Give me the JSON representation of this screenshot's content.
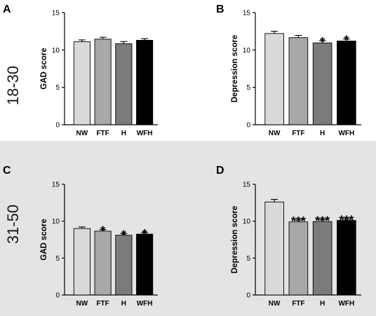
{
  "row_labels": [
    "18-30",
    "31-50"
  ],
  "colors": {
    "background_bottom": "#e4e4e4",
    "bars": [
      "#d9d9d9",
      "#a8a8a8",
      "#7b7b7b",
      "#000000"
    ],
    "stroke": "#000000"
  },
  "chart_data": [
    {
      "type": "bar",
      "panel": "A",
      "row": 0,
      "col": 0,
      "ylabel": "GAD score",
      "ylim": [
        0,
        15
      ],
      "yticks": [
        0,
        5,
        10,
        15
      ],
      "categories": [
        "NW",
        "FTF",
        "H",
        "WFH"
      ],
      "values": [
        11.1,
        11.45,
        10.85,
        11.3
      ],
      "errors": [
        0.25,
        0.25,
        0.28,
        0.22
      ],
      "significance": [
        "",
        "",
        "",
        ""
      ]
    },
    {
      "type": "bar",
      "panel": "B",
      "row": 0,
      "col": 1,
      "ylabel": "Depression score",
      "ylim": [
        0,
        15
      ],
      "yticks": [
        0,
        5,
        10,
        15
      ],
      "categories": [
        "NW",
        "FTF",
        "H",
        "WFH"
      ],
      "values": [
        12.2,
        11.65,
        10.95,
        11.2
      ],
      "errors": [
        0.3,
        0.3,
        0.3,
        0.28
      ],
      "significance": [
        "",
        "",
        "*",
        "*"
      ]
    },
    {
      "type": "bar",
      "panel": "C",
      "row": 1,
      "col": 0,
      "ylabel": "GAD score",
      "ylim": [
        0,
        15
      ],
      "yticks": [
        0,
        5,
        10,
        15
      ],
      "categories": [
        "NW",
        "FTF",
        "H",
        "WFH"
      ],
      "values": [
        9.0,
        8.65,
        8.1,
        8.25
      ],
      "errors": [
        0.22,
        0.22,
        0.22,
        0.22
      ],
      "significance": [
        "",
        "*",
        "*",
        "*"
      ]
    },
    {
      "type": "bar",
      "panel": "D",
      "row": 1,
      "col": 1,
      "ylabel": "Depression score",
      "ylim": [
        0,
        15
      ],
      "yticks": [
        0,
        5,
        10,
        15
      ],
      "categories": [
        "NW",
        "FTF",
        "H",
        "WFH"
      ],
      "values": [
        12.6,
        9.9,
        9.95,
        10.1
      ],
      "errors": [
        0.35,
        0.25,
        0.25,
        0.22
      ],
      "significance": [
        "",
        "***",
        "***",
        "***"
      ]
    }
  ]
}
